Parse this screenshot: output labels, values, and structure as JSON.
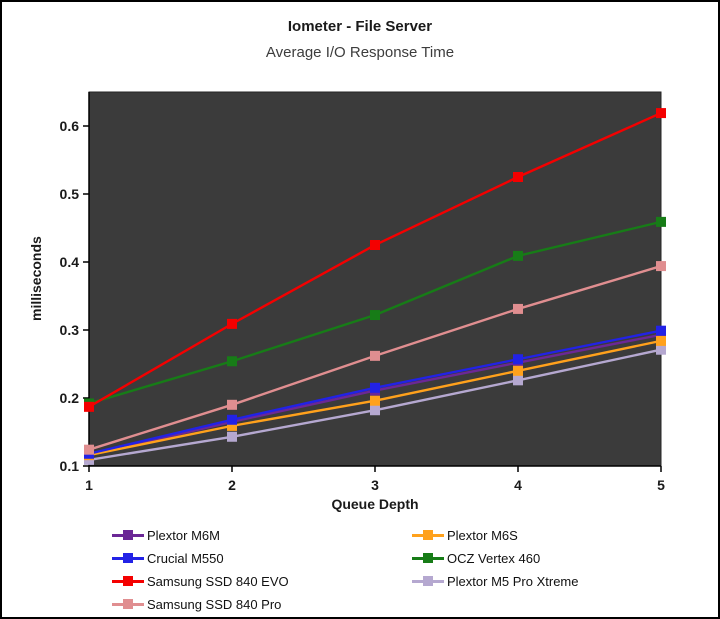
{
  "title": "Iometer - File Server",
  "subtitle": "Average I/O Response Time",
  "colors": {
    "page_background": "#FFFFFF",
    "frame_border": "#000000",
    "plot_background": "#3B3B3B",
    "axis": "#000000",
    "tick_label": "#1A1A1A"
  },
  "chart_data": {
    "type": "line",
    "x": [
      1,
      2,
      3,
      4,
      5
    ],
    "xtick_labels": [
      "1",
      "2",
      "3",
      "4",
      "5"
    ],
    "ytick_values": [
      0.1,
      0.2,
      0.3,
      0.4,
      0.5,
      0.6
    ],
    "ytick_labels": [
      "0.1",
      "0.2",
      "0.3",
      "0.4",
      "0.5",
      "0.6"
    ],
    "ylim": [
      0.1,
      0.65
    ],
    "xlabel": "Queue Depth",
    "ylabel": "milliseconds",
    "grid": false,
    "legend_position": "bottom",
    "marker": "square",
    "series": [
      {
        "name": "Plextor M6M",
        "color": "#6B2796",
        "values": [
          0.116,
          0.165,
          0.211,
          0.252,
          0.293
        ]
      },
      {
        "name": "Plextor M6S",
        "color": "#FFA11C",
        "values": [
          0.116,
          0.159,
          0.196,
          0.24,
          0.284
        ]
      },
      {
        "name": "Crucial M550",
        "color": "#2222E6",
        "values": [
          0.118,
          0.168,
          0.215,
          0.257,
          0.299
        ]
      },
      {
        "name": "OCZ Vertex 460",
        "color": "#177C17",
        "values": [
          0.192,
          0.254,
          0.322,
          0.409,
          0.459
        ]
      },
      {
        "name": "Samsung SSD 840 EVO",
        "color": "#F40000",
        "values": [
          0.187,
          0.309,
          0.425,
          0.525,
          0.619
        ]
      },
      {
        "name": "Plextor M5 Pro Xtreme",
        "color": "#B5A8D0",
        "values": [
          0.109,
          0.143,
          0.182,
          0.226,
          0.271
        ]
      },
      {
        "name": "Samsung SSD 840 Pro",
        "color": "#E08E90",
        "values": [
          0.124,
          0.19,
          0.262,
          0.331,
          0.394
        ]
      }
    ],
    "draw_order": [
      0,
      5,
      1,
      2,
      3,
      4,
      6
    ]
  }
}
